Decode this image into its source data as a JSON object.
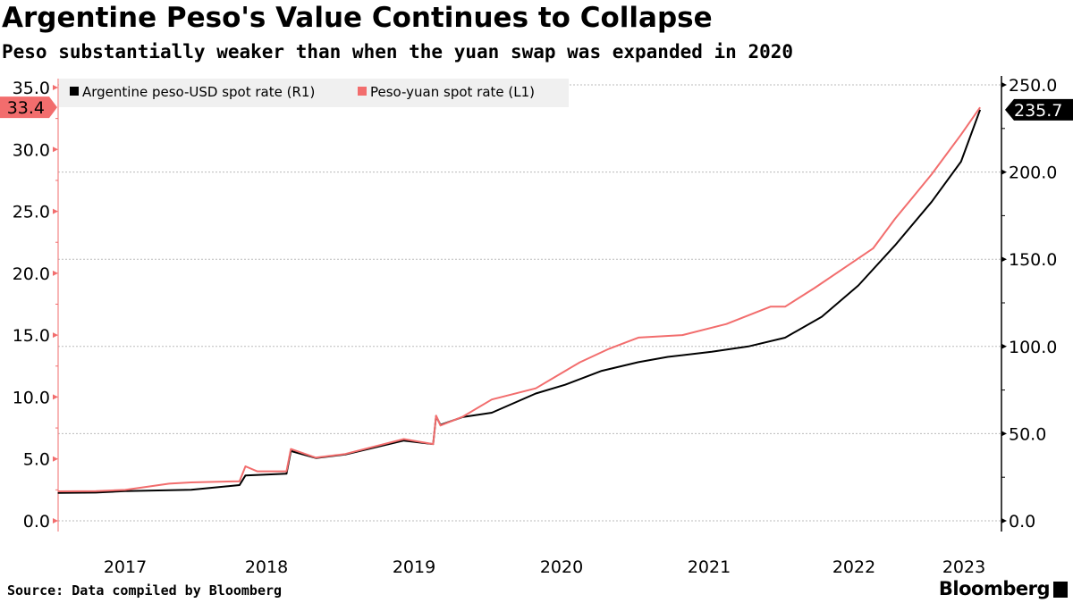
{
  "title": "Argentine Peso's Value Continues to Collapse",
  "subtitle": "Peso substantially weaker than when the yuan swap was expanded in 2020",
  "source": "Source: Data compiled by Bloomberg",
  "logo": "Bloomberg",
  "chart_data": {
    "type": "line",
    "title": "Argentine Peso's Value Continues to Collapse",
    "subtitle": "Peso substantially weaker than when the yuan swap was expanded in 2020",
    "x_ticks": [
      "2017",
      "2018",
      "2019",
      "2020",
      "2021",
      "2022",
      "2023"
    ],
    "xlim": [
      2017.04,
      2023.4
    ],
    "y_left": {
      "ticks": [
        "0.0",
        "5.0",
        "10.0",
        "15.0",
        "20.0",
        "25.0",
        "30.0",
        "35.0"
      ],
      "ylim": [
        0,
        35
      ],
      "color": "#f26d6d"
    },
    "y_right": {
      "ticks": [
        "0.0",
        "50.0",
        "100.0",
        "150.0",
        "200.0",
        "250.0"
      ],
      "ylim": [
        0,
        250
      ],
      "color": "#000000"
    },
    "grid": "horizontal dashed (right axis)",
    "legend_placement": "top-left",
    "series": [
      {
        "name": "Argentine peso-USD spot rate (R1)",
        "axis": "right",
        "color": "#000000",
        "last_label": "235.7",
        "x": [
          2017.04,
          2017.3,
          2017.5,
          2017.8,
          2017.95,
          2018.28,
          2018.32,
          2018.6,
          2018.63,
          2018.8,
          2019.0,
          2019.4,
          2019.6,
          2019.62,
          2019.65,
          2019.8,
          2020.0,
          2020.3,
          2020.5,
          2020.75,
          2021.0,
          2021.2,
          2021.5,
          2021.75,
          2022.0,
          2022.25,
          2022.5,
          2022.75,
          2023.0,
          2023.2,
          2023.33
        ],
        "y": [
          16,
          16.2,
          17,
          17.5,
          17.8,
          20.5,
          26,
          27,
          40,
          36,
          38,
          46,
          44,
          60,
          55,
          59.5,
          62,
          73,
          78,
          86,
          91,
          94,
          97,
          100,
          105,
          117,
          135,
          158,
          183,
          206,
          235.7
        ]
      },
      {
        "name": "Peso-yuan spot rate (L1)",
        "axis": "left",
        "color": "#f26d6d",
        "last_label": "33.4",
        "x": [
          2017.04,
          2017.3,
          2017.5,
          2017.8,
          2017.95,
          2018.28,
          2018.32,
          2018.4,
          2018.6,
          2018.63,
          2018.8,
          2019.0,
          2019.4,
          2019.6,
          2019.62,
          2019.65,
          2019.8,
          2020.0,
          2020.3,
          2020.6,
          2020.8,
          2021.0,
          2021.3,
          2021.6,
          2021.9,
          2022.0,
          2022.2,
          2022.4,
          2022.6,
          2022.75,
          2023.0,
          2023.2,
          2023.33
        ],
        "y": [
          2.38,
          2.4,
          2.5,
          3.0,
          3.1,
          3.2,
          4.4,
          4.0,
          4.0,
          5.8,
          5.1,
          5.4,
          6.6,
          6.2,
          8.5,
          7.7,
          8.4,
          9.8,
          10.7,
          12.8,
          13.9,
          14.8,
          15.0,
          15.9,
          17.3,
          17.3,
          18.8,
          20.4,
          22.0,
          24.4,
          28,
          31.2,
          33.4
        ]
      }
    ]
  }
}
